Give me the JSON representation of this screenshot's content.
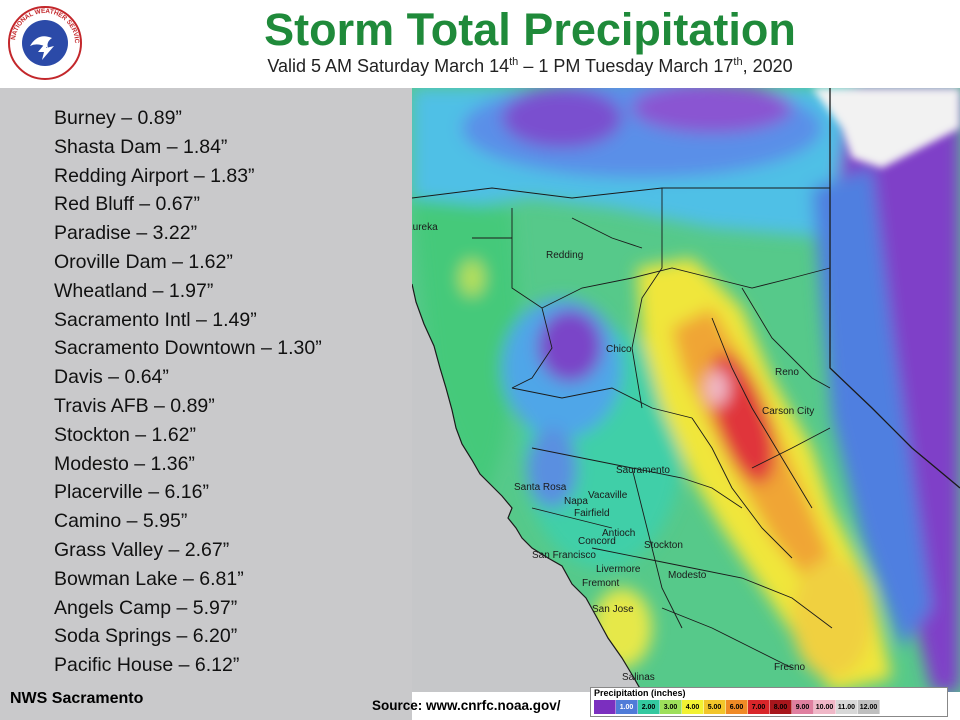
{
  "title": "Storm Total Precipitation",
  "subtitle": {
    "p1": "Valid 5 AM Saturday March 14",
    "s1": "th",
    "p2": " – 1 PM Tuesday March 17",
    "s2": "th",
    "p3": ", 2020"
  },
  "logo": {
    "text": "NATIONAL WEATHER SERVICE",
    "icon": "nws-logo-icon"
  },
  "stations": [
    {
      "label": "Burney –  0.89”"
    },
    {
      "label": "Shasta Dam – 1.84”"
    },
    {
      "label": "Redding Airport –  1.83”"
    },
    {
      "label": "Red Bluff – 0.67”"
    },
    {
      "label": "Paradise – 3.22”"
    },
    {
      "label": "Oroville Dam – 1.62”"
    },
    {
      "label": "Wheatland – 1.97”"
    },
    {
      "label": "Sacramento Intl – 1.49”"
    },
    {
      "label": "Sacramento Downtown – 1.30”"
    },
    {
      "label": "Davis – 0.64”"
    },
    {
      "label": "Travis AFB – 0.89”"
    },
    {
      "label": "Stockton – 1.62”"
    },
    {
      "label": "Modesto – 1.36”"
    },
    {
      "label": "Placerville – 6.16”"
    },
    {
      "label": "Camino – 5.95”"
    },
    {
      "label": "Grass Valley – 2.67”"
    },
    {
      "label": "Bowman Lake – 6.81”"
    },
    {
      "label": "Angels Camp – 5.97”"
    },
    {
      "label": "Soda Springs – 6.20”"
    },
    {
      "label": "Pacific House – 6.12”"
    }
  ],
  "office": "NWS Sacramento",
  "source": "Source: www.cnrfc.noaa.gov/",
  "map_labels": {
    "eureka": "Eureka",
    "redding": "Redding",
    "chico": "Chico",
    "reno": "Reno",
    "carson_city": "Carson City",
    "sacramento": "Sacramento",
    "santa_rosa": "Santa Rosa",
    "vacaville": "Vacaville",
    "napa": "Napa",
    "fairfield": "Fairfield",
    "concord": "Concord",
    "antioch": "Antioch",
    "stockton": "Stockton",
    "san_francisco": "San Francisco",
    "livermore": "Livermore",
    "fremont": "Fremont",
    "modesto": "Modesto",
    "san_jose": "San Jose",
    "fresno": "Fresno",
    "salinas": "Salinas"
  },
  "legend": {
    "title": "Precipitation (inches)",
    "items": [
      {
        "label": "",
        "color": "#7b2fbf"
      },
      {
        "label": "1.00",
        "color": "#4f7bd8"
      },
      {
        "label": "2.00",
        "color": "#33c9a0"
      },
      {
        "label": "3.00",
        "color": "#9de05a"
      },
      {
        "label": "4.00",
        "color": "#f2f232"
      },
      {
        "label": "5.00",
        "color": "#f2c62a"
      },
      {
        "label": "6.00",
        "color": "#f08a26"
      },
      {
        "label": "7.00",
        "color": "#d9262a"
      },
      {
        "label": "8.00",
        "color": "#a8161c"
      },
      {
        "label": "9.00",
        "color": "#e07fa0"
      },
      {
        "label": "10.00",
        "color": "#f0b8c8"
      },
      {
        "label": "11.00",
        "color": "#d8d8d8"
      },
      {
        "label": "12.00",
        "color": "#bfbfbf"
      },
      {
        "label": "",
        "color": "#ffffff"
      }
    ]
  },
  "colors": {
    "title_green": "#1f8a3a",
    "panel_gray": "#c9c9cb",
    "ocean_gray": "#c6c7c9",
    "purple": "#8f4fd0",
    "blue": "#4f8fe8",
    "cyan": "#39c9e0",
    "teal": "#3fc9a8",
    "green": "#4fc76a",
    "yellow": "#f0e63a",
    "orange": "#f0a535",
    "red": "#e0353a"
  }
}
